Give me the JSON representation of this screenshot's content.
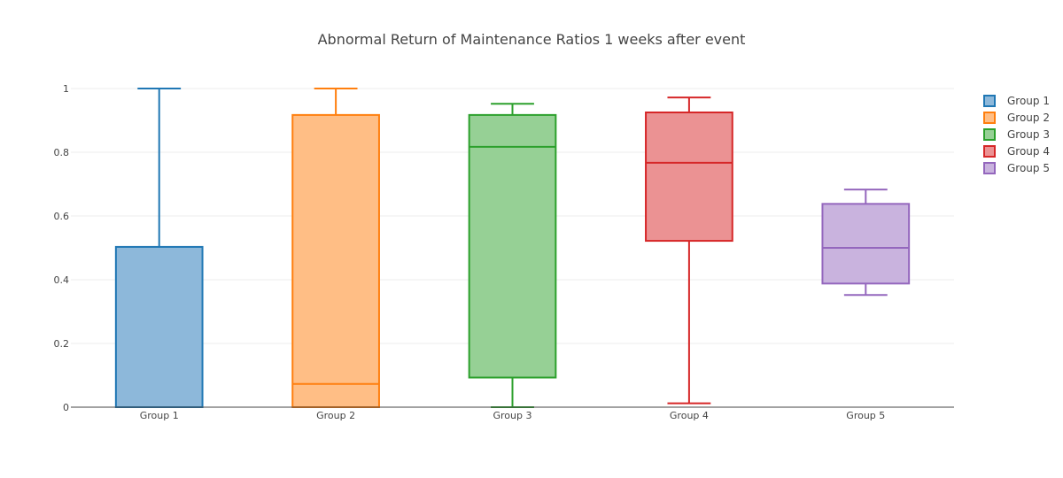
{
  "chart_data": {
    "type": "box",
    "title": "Abnormal Return of Maintenance Ratios 1 weeks after event",
    "xlabel": "",
    "ylabel": "",
    "ylim": [
      0,
      1.0
    ],
    "yticks": [
      0,
      0.2,
      0.4,
      0.6,
      0.8,
      1
    ],
    "ytick_labels": [
      "0",
      "0.2",
      "0.4",
      "0.6",
      "0.8",
      "1"
    ],
    "grid": true,
    "legend_position": "top-right",
    "categories": [
      "Group 1",
      "Group 2",
      "Group 3",
      "Group 4",
      "Group 5"
    ],
    "series": [
      {
        "name": "Group 1",
        "color": "#1f77b4",
        "fill": "#8db8da",
        "min": 0.0,
        "q1": 0.0,
        "median": 0.0,
        "q3": 0.503,
        "max": 1.0
      },
      {
        "name": "Group 2",
        "color": "#ff7f0e",
        "fill": "#ffbe85",
        "min": 0.0,
        "q1": 0.0,
        "median": 0.073,
        "q3": 0.917,
        "max": 1.0
      },
      {
        "name": "Group 3",
        "color": "#2ca02c",
        "fill": "#96d095",
        "min": 0.0,
        "q1": 0.093,
        "median": 0.817,
        "q3": 0.917,
        "max": 0.952
      },
      {
        "name": "Group 4",
        "color": "#d62728",
        "fill": "#eb9293",
        "min": 0.012,
        "q1": 0.522,
        "median": 0.767,
        "q3": 0.925,
        "max": 0.972
      },
      {
        "name": "Group 5",
        "color": "#9467bd",
        "fill": "#c9b3de",
        "min": 0.352,
        "q1": 0.388,
        "median": 0.5,
        "q3": 0.638,
        "max": 0.683
      }
    ]
  }
}
